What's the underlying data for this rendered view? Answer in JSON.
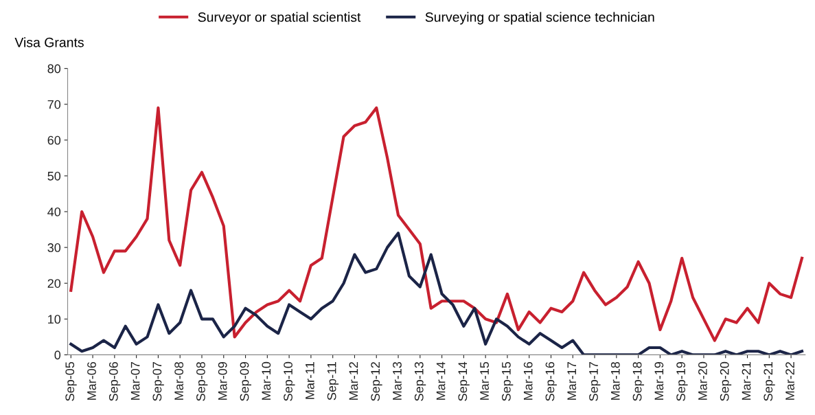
{
  "chart_data": {
    "type": "line",
    "ylabel": "Visa Grants",
    "categories": [
      "Sep-05",
      null,
      "Mar-06",
      null,
      "Sep-06",
      null,
      "Mar-07",
      null,
      "Sep-07",
      null,
      "Mar-08",
      null,
      "Sep-08",
      null,
      "Mar-09",
      null,
      "Sep-09",
      null,
      "Mar-10",
      null,
      "Sep-10",
      null,
      "Mar-11",
      null,
      "Sep-11",
      null,
      "Mar-12",
      null,
      "Sep-12",
      null,
      "Mar-13",
      null,
      "Sep-13",
      null,
      "Mar-14",
      null,
      "Sep-14",
      null,
      "Mar-15",
      null,
      "Sep-15",
      null,
      "Mar-16",
      null,
      "Sep-16",
      null,
      "Mar-17",
      null,
      "Sep-17",
      null,
      "Mar-18",
      null,
      "Sep-18",
      null,
      "Mar-19",
      null,
      "Sep-19",
      null,
      "Mar-20",
      null,
      "Sep-20",
      null,
      "Mar-21",
      null,
      "Sep-21",
      null,
      "Mar-22",
      null
    ],
    "series": [
      {
        "name": "Surveyor or spatial scientist",
        "color": "#c8202f",
        "values": [
          18,
          40,
          33,
          23,
          29,
          29,
          33,
          38,
          69,
          32,
          25,
          46,
          51,
          44,
          36,
          5,
          9,
          12,
          14,
          15,
          18,
          15,
          25,
          27,
          44,
          61,
          64,
          65,
          69,
          55,
          39,
          35,
          31,
          13,
          15,
          15,
          15,
          13,
          10,
          9,
          17,
          7,
          12,
          9,
          13,
          12,
          15,
          23,
          18,
          14,
          16,
          19,
          26,
          20,
          7,
          15,
          27,
          16,
          10,
          4,
          10,
          9,
          13,
          9,
          20,
          17,
          16,
          27
        ]
      },
      {
        "name": "Surveying or spatial science technician",
        "color": "#1b2447",
        "values": [
          3,
          1,
          2,
          4,
          2,
          8,
          3,
          5,
          14,
          6,
          9,
          18,
          10,
          10,
          5,
          8,
          13,
          11,
          8,
          6,
          14,
          12,
          10,
          13,
          15,
          20,
          28,
          23,
          24,
          30,
          34,
          22,
          19,
          28,
          17,
          14,
          8,
          13,
          3,
          10,
          8,
          5,
          3,
          6,
          4,
          2,
          4,
          0,
          0,
          0,
          0,
          0,
          0,
          2,
          2,
          0,
          1,
          0,
          0,
          0,
          1,
          0,
          1,
          1,
          0,
          1,
          0,
          1
        ]
      }
    ],
    "ylim": [
      0,
      80
    ],
    "yticks": [
      0,
      10,
      20,
      30,
      40,
      50,
      60,
      70,
      80
    ],
    "grid": false,
    "legend": "top",
    "marker": "none",
    "line_style": "solid"
  }
}
